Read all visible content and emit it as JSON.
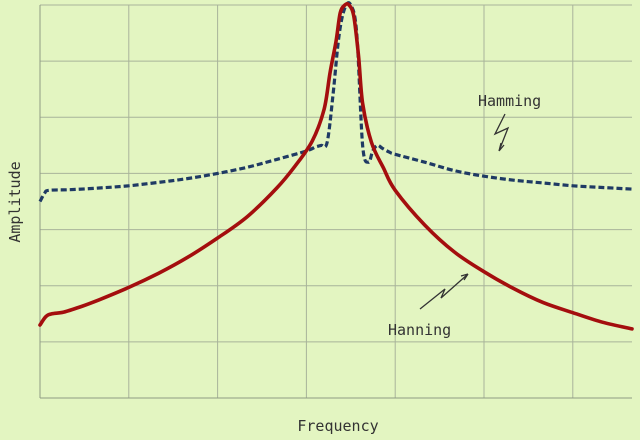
{
  "chart_data": {
    "type": "line",
    "title": "",
    "xlabel": "Frequency",
    "ylabel": "Amplitude",
    "xlim": [
      0,
      10
    ],
    "ylim": [
      0,
      7
    ],
    "grid": true,
    "x_ticks": [
      0,
      1.5,
      3,
      4.5,
      6,
      7.5,
      9
    ],
    "y_ticks": [
      1,
      2,
      3,
      4,
      5,
      6,
      7
    ],
    "colors": {
      "background": "#e3f5c1",
      "grid": "#a8b39a",
      "axis_text": "#333333",
      "Hanning": "#a40e0e",
      "Hamming": "#1f3a64"
    },
    "series": [
      {
        "name": "Hamming",
        "style": "dashed",
        "x": [
          0,
          0.08,
          0.15,
          0.5,
          1.0,
          1.5,
          2.0,
          2.5,
          3.0,
          3.5,
          4.0,
          4.5,
          4.65,
          4.75,
          4.85,
          4.95,
          5.05,
          5.15,
          5.25,
          5.35,
          5.45,
          5.55,
          5.62,
          5.7,
          5.78,
          5.9,
          6.0,
          6.5,
          7.0,
          7.5,
          8.0,
          8.5,
          9.0,
          9.5,
          10.0
        ],
        "y": [
          3.5,
          3.65,
          3.7,
          3.71,
          3.74,
          3.78,
          3.84,
          3.91,
          4.0,
          4.11,
          4.25,
          4.4,
          4.47,
          4.5,
          4.55,
          5.4,
          6.45,
          6.95,
          7.0,
          6.5,
          4.5,
          4.2,
          4.4,
          4.5,
          4.45,
          4.38,
          4.34,
          4.2,
          4.05,
          3.95,
          3.88,
          3.83,
          3.78,
          3.75,
          3.72
        ]
      },
      {
        "name": "Hanning",
        "style": "solid",
        "x": [
          0,
          0.1,
          0.2,
          0.4,
          0.7,
          1.0,
          1.5,
          2.0,
          2.5,
          3.0,
          3.5,
          4.0,
          4.3,
          4.6,
          4.8,
          4.9,
          5.0,
          5.07,
          5.15,
          5.22,
          5.3,
          5.38,
          5.45,
          5.6,
          5.8,
          6.0,
          6.5,
          7.0,
          7.5,
          8.0,
          8.5,
          9.0,
          9.5,
          10.0
        ],
        "y": [
          1.3,
          1.45,
          1.5,
          1.53,
          1.63,
          1.75,
          1.97,
          2.22,
          2.51,
          2.85,
          3.23,
          3.74,
          4.12,
          4.58,
          5.15,
          5.8,
          6.35,
          6.85,
          7.0,
          7.0,
          6.8,
          6.1,
          5.25,
          4.55,
          4.1,
          3.7,
          3.08,
          2.6,
          2.25,
          1.95,
          1.7,
          1.52,
          1.35,
          1.23
        ]
      }
    ],
    "annotations": [
      {
        "text": "Hamming",
        "series": "Hamming",
        "arrow": "zigzag"
      },
      {
        "text": "Hanning",
        "series": "Hanning",
        "arrow": "zigzag"
      }
    ]
  }
}
